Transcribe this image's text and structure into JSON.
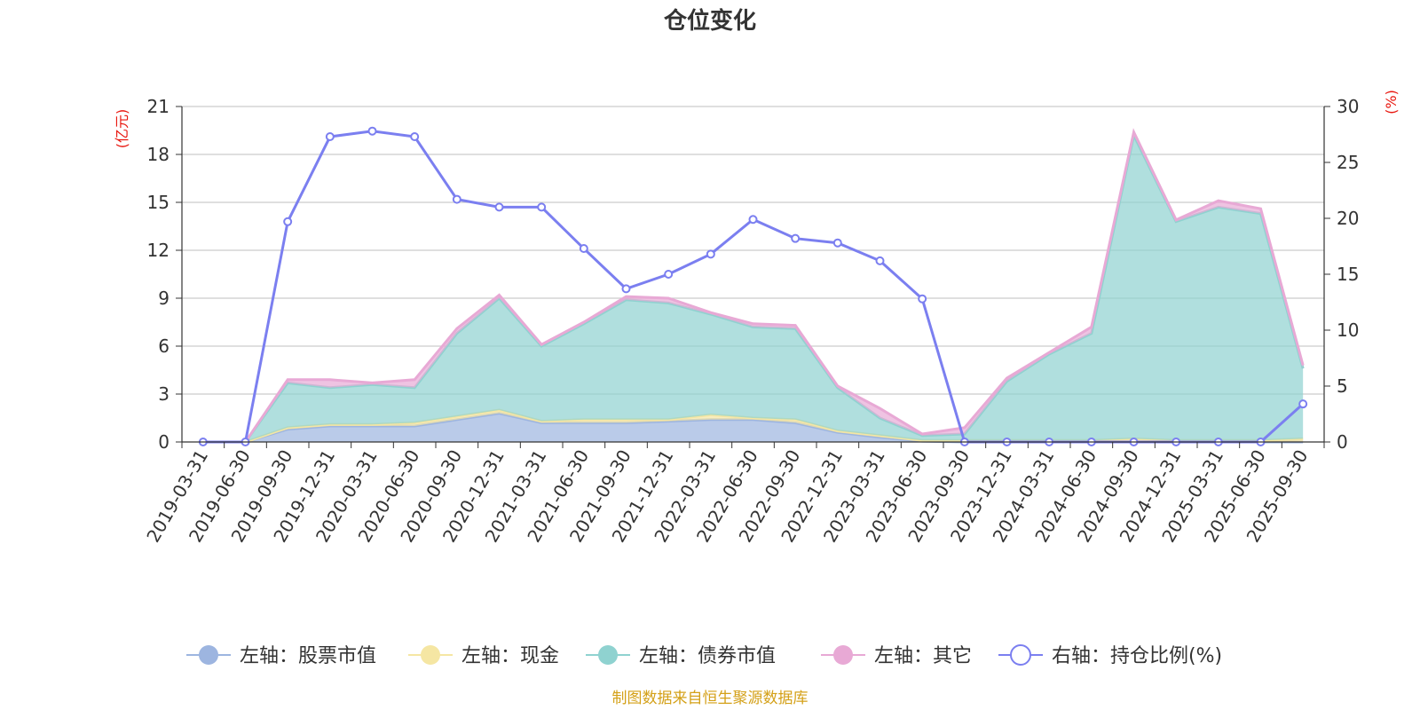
{
  "chart_data": {
    "type": "area",
    "title": "仓位变化",
    "left_axis_unit": "(亿元)",
    "right_axis_unit": "(%)",
    "left_ylim": [
      0,
      21
    ],
    "left_ticks": [
      0,
      3,
      6,
      9,
      12,
      15,
      18,
      21
    ],
    "right_ylim": [
      0,
      30
    ],
    "right_ticks": [
      0,
      5,
      10,
      15,
      20,
      25,
      30
    ],
    "categories": [
      "2019-03-31",
      "2019-06-30",
      "2019-09-30",
      "2019-12-31",
      "2020-03-31",
      "2020-06-30",
      "2020-09-30",
      "2020-12-31",
      "2021-03-31",
      "2021-06-30",
      "2021-09-30",
      "2021-12-31",
      "2022-03-31",
      "2022-06-30",
      "2022-09-30",
      "2022-12-31",
      "2023-03-31",
      "2023-06-30",
      "2023-09-30",
      "2023-12-31",
      "2024-03-31",
      "2024-06-30",
      "2024-09-30",
      "2024-12-31",
      "2025-03-31",
      "2025-06-30",
      "2025-09-30"
    ],
    "series": [
      {
        "name": "左轴：股票市值",
        "axis": "left",
        "color": "#9db5e0",
        "values": [
          0,
          0,
          0.8,
          1.0,
          1.0,
          1.0,
          1.4,
          1.8,
          1.2,
          1.2,
          1.2,
          1.3,
          1.4,
          1.4,
          1.2,
          0.6,
          0.3,
          0.05,
          0,
          0,
          0,
          0,
          0,
          0,
          0,
          0,
          0
        ]
      },
      {
        "name": "左轴：现金",
        "axis": "left",
        "color": "#f5e6a3",
        "values": [
          0,
          0,
          0.1,
          0.1,
          0.1,
          0.2,
          0.2,
          0.2,
          0.1,
          0.2,
          0.2,
          0.1,
          0.3,
          0.1,
          0.2,
          0.1,
          0.1,
          0.05,
          0.1,
          0.1,
          0.1,
          0.1,
          0.2,
          0.1,
          0.1,
          0.1,
          0.2
        ]
      },
      {
        "name": "左轴：债券市值",
        "axis": "left",
        "color": "#8fd2d0",
        "values": [
          0,
          0,
          2.8,
          2.3,
          2.5,
          2.2,
          5.2,
          7.0,
          4.7,
          6.0,
          7.5,
          7.3,
          6.3,
          5.7,
          5.7,
          2.7,
          1.1,
          0.3,
          0.4,
          3.7,
          5.4,
          6.7,
          19.0,
          13.7,
          14.6,
          14.2,
          4.4
        ]
      },
      {
        "name": "左轴：其它",
        "axis": "left",
        "color": "#e8a9d5",
        "values": [
          0,
          0,
          0.2,
          0.5,
          0.1,
          0.5,
          0.3,
          0.2,
          0.1,
          0.1,
          0.2,
          0.3,
          0.1,
          0.2,
          0.2,
          0.1,
          0.6,
          0.1,
          0.4,
          0.2,
          0.1,
          0.4,
          0.2,
          0.1,
          0.4,
          0.3,
          0.2
        ]
      },
      {
        "name": "右轴：持仓比例(%)",
        "axis": "right",
        "color": "#7b7ff0",
        "values": [
          0,
          0,
          19.7,
          27.3,
          27.8,
          27.3,
          21.7,
          21.0,
          21.0,
          17.3,
          13.7,
          15.0,
          16.8,
          19.9,
          18.2,
          17.8,
          16.2,
          12.8,
          0,
          0,
          0,
          0,
          0,
          0,
          0,
          0,
          3.4
        ]
      }
    ]
  },
  "source": "制图数据来自恒生聚源数据库",
  "colors": {
    "axis_unit": "#e8170f",
    "source": "#d4a017",
    "grid": "#cccccc",
    "axis": "#333333"
  }
}
